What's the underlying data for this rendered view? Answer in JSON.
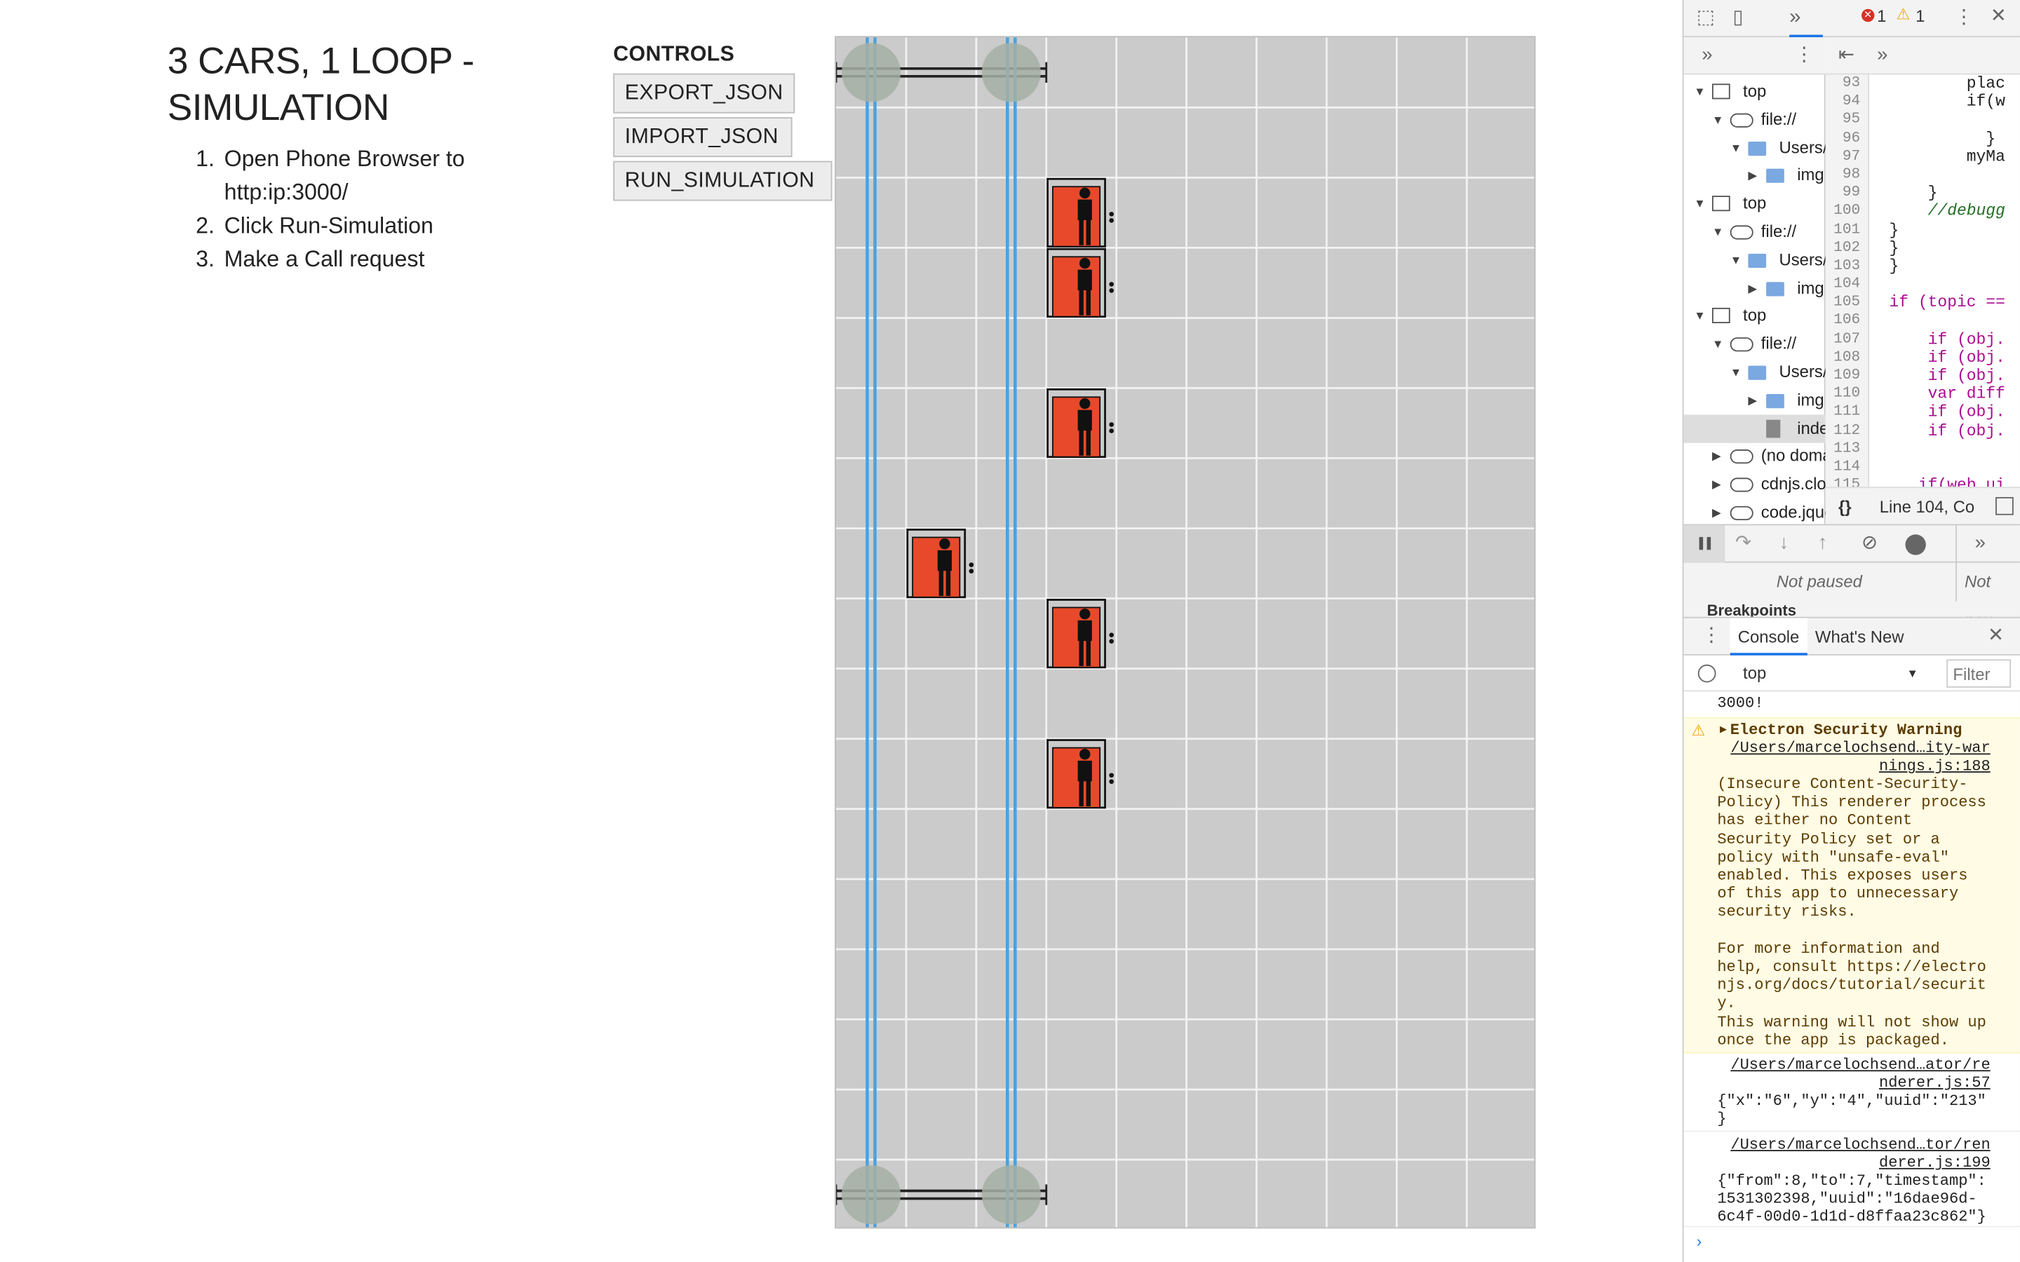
{
  "app": {
    "title": "3 CARS, 1 LOOP - SIMULATION",
    "steps": [
      {
        "num": "1.",
        "text": "Open Phone Browser to http:ip:3000/"
      },
      {
        "num": "2.",
        "text": "Click Run-Simulation"
      },
      {
        "num": "3.",
        "text": "Make a Call request"
      }
    ],
    "controls": {
      "heading": "CONTROLS",
      "export_label": "EXPORT_JSON",
      "import_label": "IMPORT_JSON",
      "run_label": "RUN_SIMULATION"
    }
  },
  "simulation": {
    "grid_columns": 10,
    "grid_rows": 17,
    "track_columns": [
      0.5,
      2.5
    ],
    "track_loop_rows": [
      0,
      16
    ],
    "cars": [
      {
        "col": 3,
        "row": 2
      },
      {
        "col": 3,
        "row": 3
      },
      {
        "col": 3,
        "row": 5
      },
      {
        "col": 1,
        "row": 7
      },
      {
        "col": 3,
        "row": 8
      },
      {
        "col": 3,
        "row": 10
      }
    ],
    "colors": {
      "grid_bg": "#cbcbcb",
      "grid_line": "#f2f2f2",
      "track": "#4aa3df",
      "car": "#e8492a",
      "node": "#a6b0a6"
    }
  },
  "devtools": {
    "errors": "1",
    "warnings": "1",
    "tree": [
      {
        "label": "top",
        "indent": 0,
        "type": "frame",
        "open": true
      },
      {
        "label": "file://",
        "indent": 1,
        "type": "cloud",
        "open": true
      },
      {
        "label": "Users/m",
        "indent": 2,
        "type": "folder",
        "open": true
      },
      {
        "label": "img",
        "indent": 3,
        "type": "folder",
        "open": false
      },
      {
        "label": "top",
        "indent": 0,
        "type": "frame",
        "open": true
      },
      {
        "label": "file://",
        "indent": 1,
        "type": "cloud",
        "open": true
      },
      {
        "label": "Users/m",
        "indent": 2,
        "type": "folder",
        "open": true
      },
      {
        "label": "img",
        "indent": 3,
        "type": "folder",
        "open": false
      },
      {
        "label": "top",
        "indent": 0,
        "type": "frame",
        "open": true
      },
      {
        "label": "file://",
        "indent": 1,
        "type": "cloud",
        "open": true
      },
      {
        "label": "Users/m",
        "indent": 2,
        "type": "folder",
        "open": true
      },
      {
        "label": "img",
        "indent": 3,
        "type": "folder",
        "open": false
      },
      {
        "label": "index",
        "indent": 3,
        "type": "file",
        "open": null
      },
      {
        "label": "(no doma",
        "indent": 1,
        "type": "cloud",
        "open": false
      },
      {
        "label": "cdnjs.clou",
        "indent": 1,
        "type": "cloud",
        "open": false
      },
      {
        "label": "code.jque",
        "indent": 1,
        "type": "cloud",
        "open": false
      }
    ],
    "line_numbers": [
      "93",
      "94",
      "95",
      "96",
      "97",
      "98",
      "99",
      "100",
      "101",
      "102",
      "103",
      "104",
      "105",
      "106",
      "107",
      "108",
      "109",
      "110",
      "111",
      "112",
      "113",
      "114",
      "115"
    ],
    "code_lines": [
      {
        "t": "         plac",
        "k": ""
      },
      {
        "t": "         if(w",
        "k": ""
      },
      {
        "t": "",
        "k": ""
      },
      {
        "t": "           }",
        "k": ""
      },
      {
        "t": "         myMa",
        "k": ""
      },
      {
        "t": "",
        "k": ""
      },
      {
        "t": "     }",
        "k": ""
      },
      {
        "t": "     //debugg",
        "k": "cm"
      },
      {
        "t": " }",
        "k": ""
      },
      {
        "t": " }",
        "k": ""
      },
      {
        "t": " }",
        "k": ""
      },
      {
        "t": "",
        "k": ""
      },
      {
        "t": " if (topic ==",
        "k": "kw"
      },
      {
        "t": "",
        "k": ""
      },
      {
        "t": "     if (obj.",
        "k": "kw"
      },
      {
        "t": "     if (obj.",
        "k": "kw"
      },
      {
        "t": "     if (obj.",
        "k": "kw"
      },
      {
        "t": "     var diff",
        "k": "kw"
      },
      {
        "t": "     if (obj.",
        "k": "kw"
      },
      {
        "t": "     if (obj.",
        "k": "kw"
      },
      {
        "t": "",
        "k": ""
      },
      {
        "t": "",
        "k": ""
      },
      {
        "t": "    if(web ui",
        "k": "kw"
      }
    ],
    "cursor_pos": "Line 104, Co",
    "not_paused_1": "Not paused",
    "not_paused_2": "Not pau",
    "breakpoints": "Breakpoints",
    "console_tab": "Console",
    "whats_new_tab": "What's New",
    "context": "top",
    "filter_placeholder": "Filter",
    "console": {
      "prev_line": "3000!",
      "warn_title": "Electron Security Warning",
      "warn_src": "/Users/marcelochsend…ity-war\nnings.js:188",
      "warn_body": "(Insecure Content-Security-\nPolicy) This renderer process\nhas either no Content\nSecurity Policy set or a\npolicy with \"unsafe-eval\"\nenabled. This exposes users\nof this app to unnecessary\nsecurity risks.\n\nFor more information and\nhelp, consult https://electro\nnjs.org/docs/tutorial/securit\ny.\nThis warning will not show up\nonce the app is packaged.",
      "log1_src": "/Users/marcelochsend…ator/re\nnderer.js:57",
      "log1_text": "{\"x\":\"6\",\"y\":\"4\",\"uuid\":\"213\"\n}",
      "log2_src": "/Users/marcelochsend…tor/ren\nderer.js:199",
      "log2_text": "{\"from\":8,\"to\":7,\"timestamp\":\n1531302398,\"uuid\":\"16dae96d-\n6c4f-00d0-1d1d-d8ffaa23c862\"}"
    }
  }
}
